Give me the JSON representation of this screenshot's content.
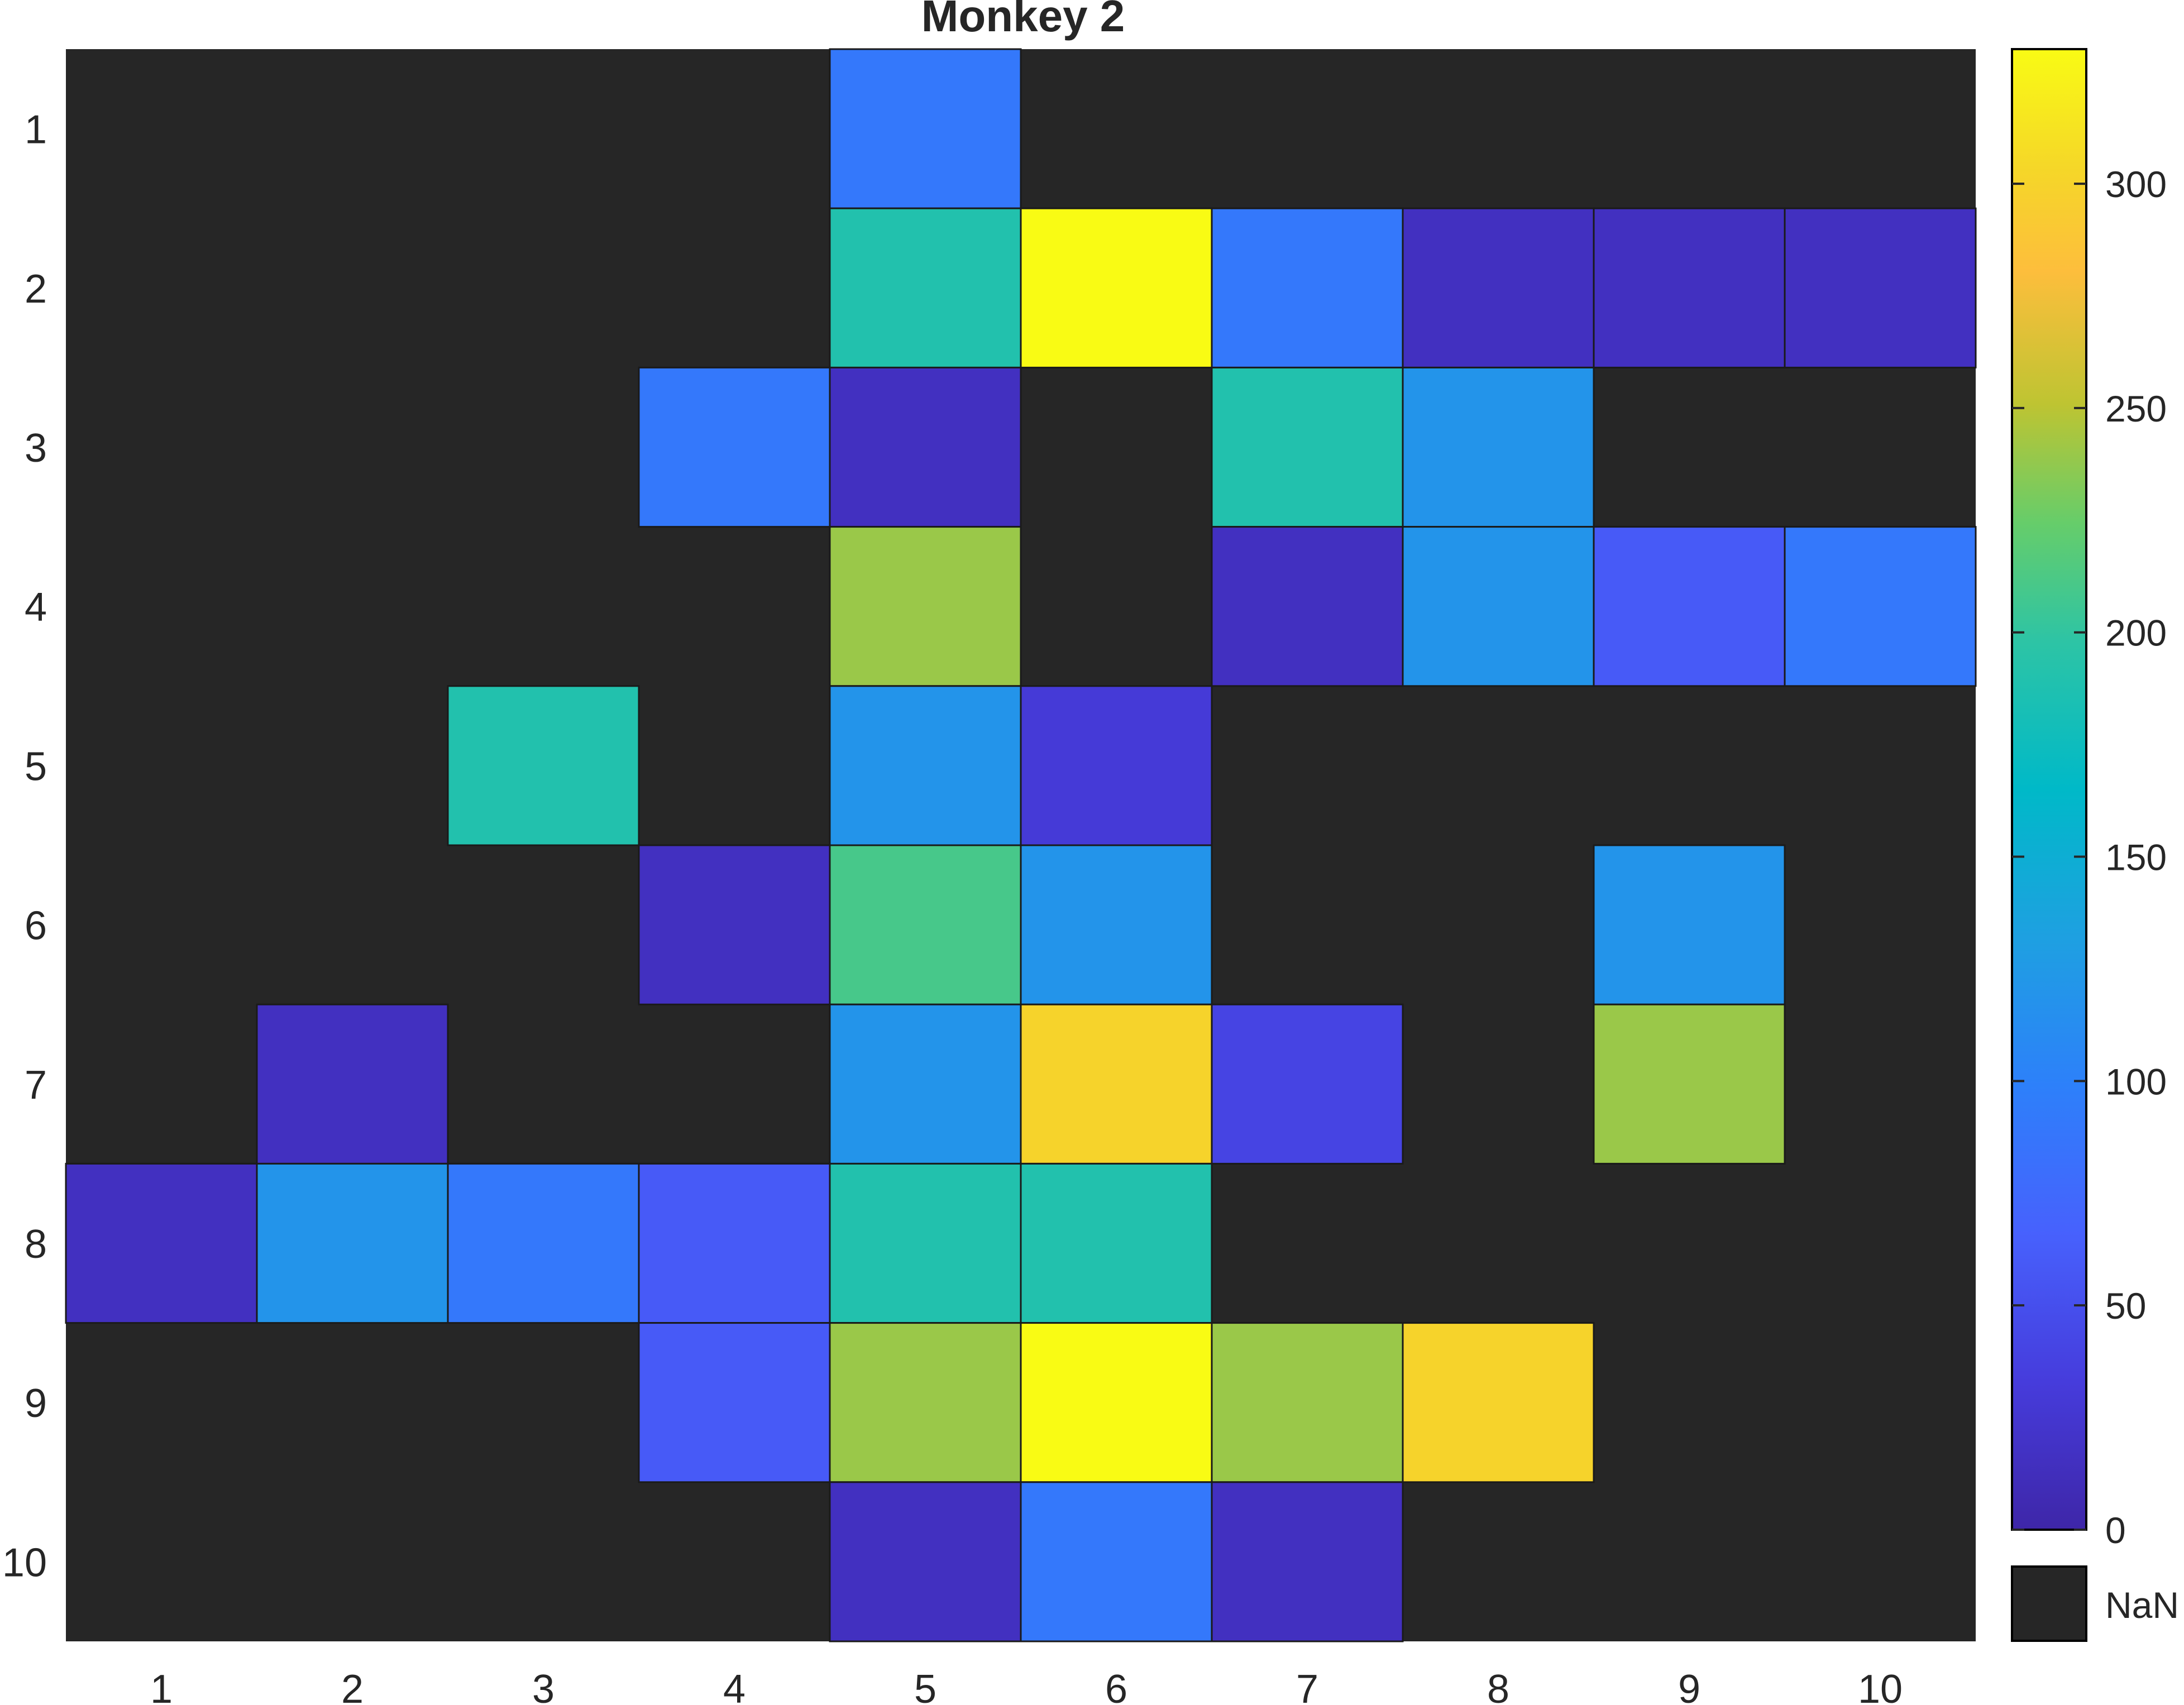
{
  "chart_data": {
    "type": "heatmap",
    "title": "Monkey 2",
    "xlabel": "",
    "ylabel": "",
    "x_categories": [
      "1",
      "2",
      "3",
      "4",
      "5",
      "6",
      "7",
      "8",
      "9",
      "10"
    ],
    "y_categories": [
      "1",
      "2",
      "3",
      "4",
      "5",
      "6",
      "7",
      "8",
      "9",
      "10"
    ],
    "nan_color": "#262626",
    "nan_label": "NaN",
    "colormap": "parula",
    "colorbar": {
      "range": [
        0,
        330
      ],
      "ticks": [
        0,
        50,
        100,
        150,
        200,
        250,
        300
      ],
      "tick_labels": [
        "0",
        "50",
        "100",
        "150",
        "200",
        "250",
        "300"
      ]
    },
    "values": [
      [
        null,
        null,
        null,
        null,
        90,
        null,
        null,
        null,
        null,
        null
      ],
      [
        null,
        null,
        null,
        null,
        190,
        330,
        90,
        15,
        15,
        15
      ],
      [
        null,
        null,
        null,
        90,
        15,
        null,
        190,
        120,
        null,
        null
      ],
      [
        null,
        null,
        null,
        null,
        240,
        null,
        15,
        120,
        60,
        90
      ],
      [
        null,
        null,
        190,
        null,
        120,
        30,
        null,
        null,
        null,
        null
      ],
      [
        null,
        null,
        null,
        15,
        210,
        120,
        null,
        null,
        120,
        null
      ],
      [
        null,
        15,
        null,
        null,
        120,
        300,
        40,
        null,
        240,
        null
      ],
      [
        15,
        120,
        90,
        60,
        190,
        190,
        null,
        null,
        null,
        null
      ],
      [
        null,
        null,
        null,
        60,
        240,
        330,
        240,
        300,
        null,
        null
      ],
      [
        null,
        null,
        null,
        null,
        15,
        90,
        15,
        null,
        null,
        null
      ]
    ]
  }
}
